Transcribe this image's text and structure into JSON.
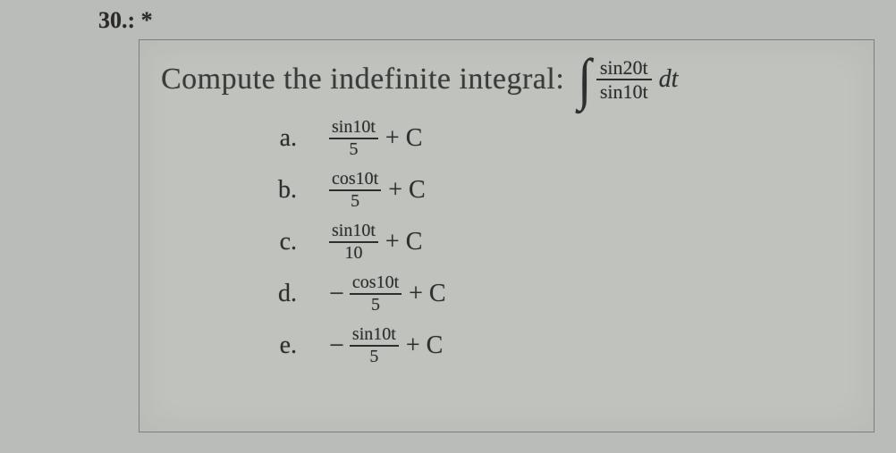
{
  "question": {
    "number_label": "30.: *",
    "prompt": "Compute the indefinite integral:",
    "integral": {
      "numerator": "sin20t",
      "denominator": "sin10t",
      "differential": "dt"
    }
  },
  "options": [
    {
      "letter": "a.",
      "sign": "",
      "num": "sin10t",
      "den": "5",
      "tail": "+ C"
    },
    {
      "letter": "b.",
      "sign": "",
      "num": "cos10t",
      "den": "5",
      "tail": "+ C"
    },
    {
      "letter": "c.",
      "sign": "",
      "num": "sin10t",
      "den": "10",
      "tail": "+ C"
    },
    {
      "letter": "d.",
      "sign": "−",
      "num": "cos10t",
      "den": "5",
      "tail": "+ C"
    },
    {
      "letter": "e.",
      "sign": "−",
      "num": "sin10t",
      "den": "5",
      "tail": "+ C"
    }
  ],
  "style": {
    "page_bg": "#b9bcb8",
    "card_bg": "#bfc2bd",
    "card_border": "#7d7f7c",
    "text_color": "#2e2e2e",
    "prompt_fontsize": 34,
    "option_fontsize": 26,
    "frac_fontsize": 20
  }
}
